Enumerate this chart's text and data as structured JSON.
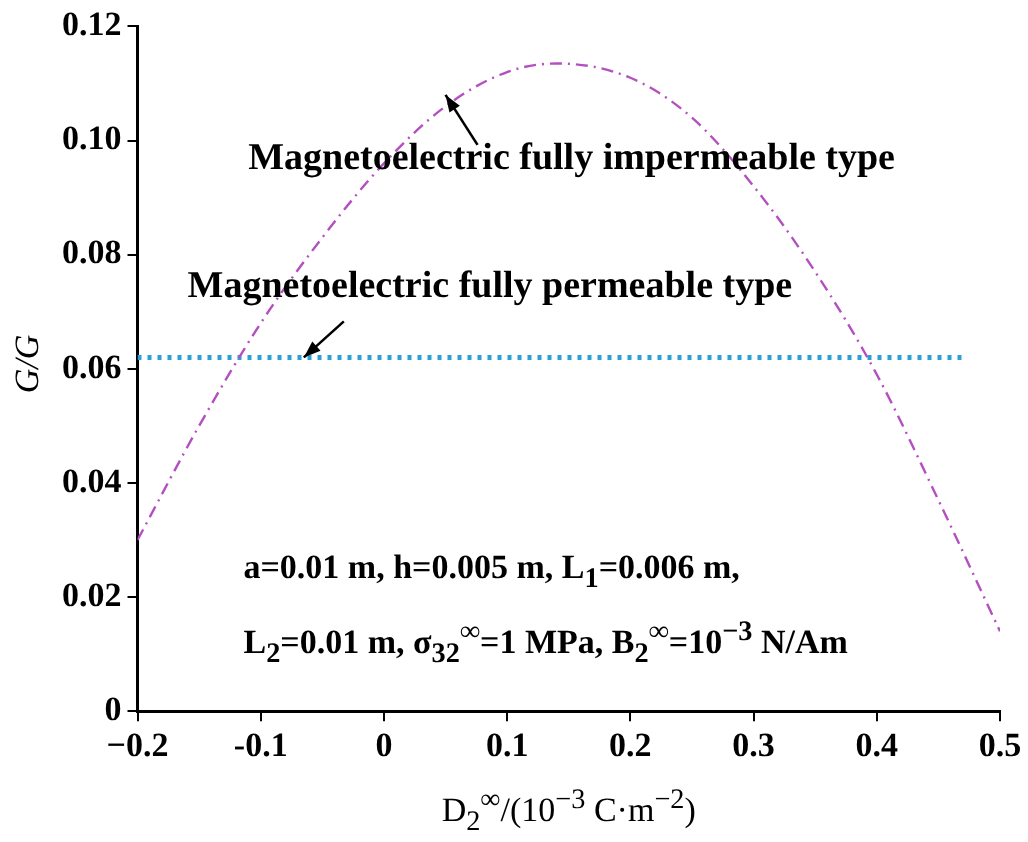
{
  "chart_data": {
    "type": "line",
    "xlabel": "D$_{2}$$^{∞}$/(10$^{−3}$ C·m$^{−2}$)",
    "ylabel": "G/G",
    "xlim": [
      -0.2,
      0.5
    ],
    "xticks": [
      {
        "value": -0.2,
        "label": "−0.2"
      },
      -0.1,
      0,
      0.1,
      0.2,
      0.3,
      0.4,
      0.5
    ],
    "ylim": [
      0,
      0.12
    ],
    "yticks": [
      0,
      0.02,
      0.04,
      0.06,
      0.08,
      {
        "value": 0.1,
        "label": "0.10"
      },
      0.12
    ],
    "grid": false,
    "legend": false,
    "series": [
      {
        "line_style": "dashed",
        "color": "#b44fc0",
        "x": [
          -0.2,
          -0.15,
          -0.1,
          -0.05,
          0,
          0.05,
          0.1,
          0.14,
          0.2,
          0.25,
          0.3,
          0.35,
          0.4,
          0.45,
          0.5
        ],
        "values": [
          0.03,
          0.05,
          0.068,
          0.083,
          0.096,
          0.106,
          0.112,
          0.1135,
          0.111,
          0.104,
          0.092,
          0.077,
          0.059,
          0.037,
          0.014
        ]
      },
      {
        "line_style": "dotted",
        "color": "#2a9fd8",
        "x": [
          -0.2,
          0.47
        ],
        "values": [
          0.062,
          0.062
        ]
      }
    ],
    "annotations": [
      {
        "text": "Magnetoelectric fully impermeable type",
        "x": 0.05,
        "y": 0.108
      },
      {
        "text": "Magnetoelectric fully permeable type",
        "x": -0.065,
        "y": 0.062
      },
      "a=0.01 m, h=0.005 m, L$_{1}$=0.006 m,",
      "L$_{2}$=0.01 m, σ$_{32}$$^{∞}$=1 MPa,  B$_{2}$$^{∞}$=10$^{−3}$ N/Am"
    ]
  }
}
